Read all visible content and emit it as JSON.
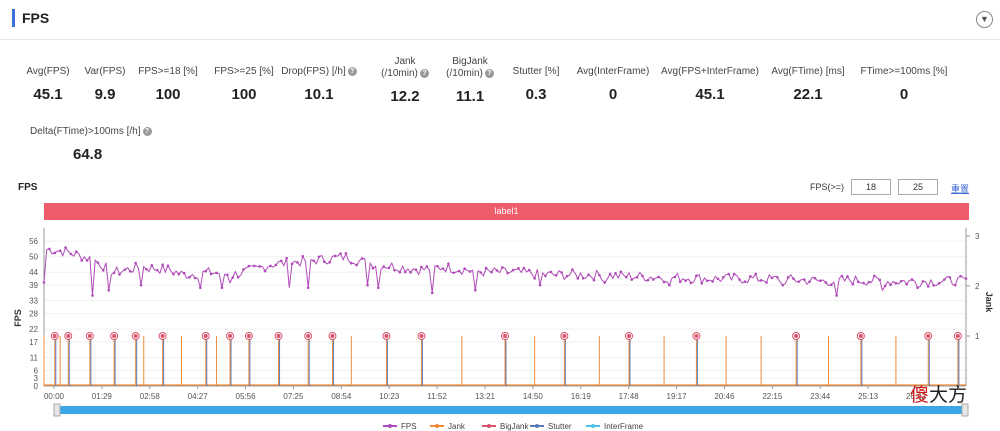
{
  "header": {
    "title": "FPS"
  },
  "metrics": [
    {
      "label": "Avg(FPS)",
      "value": "45.1"
    },
    {
      "label": "Var(FPS)",
      "value": "9.9"
    },
    {
      "label": "FPS>=18 [%]",
      "value": "100"
    },
    {
      "label": "FPS>=25 [%]",
      "value": "100"
    },
    {
      "label": "Drop(FPS) [/h]",
      "value": "10.1",
      "help": true
    },
    {
      "label1": "Jank",
      "label2": "(/10min)",
      "value": "12.2",
      "help": true
    },
    {
      "label1": "BigJank",
      "label2": "(/10min)",
      "value": "11.1",
      "help": true
    },
    {
      "label": "Stutter [%]",
      "value": "0.3"
    },
    {
      "label": "Avg(InterFrame)",
      "value": "0"
    },
    {
      "label": "Avg(FPS+InterFrame)",
      "value": "45.1"
    },
    {
      "label": "Avg(FTime) [ms]",
      "value": "22.1"
    },
    {
      "label": "FTime>=100ms [%]",
      "value": "0"
    },
    {
      "label": "Delta(FTime)>100ms [/h]",
      "value": "64.8",
      "help": true
    }
  ],
  "chart_section": {
    "title": "FPS",
    "threshold_label": "FPS(>=)",
    "threshold_low": "18",
    "threshold_high": "25",
    "reset_label": "重置",
    "label_band": "label1"
  },
  "chart_data": {
    "type": "line",
    "y_left_label": "FPS",
    "y_right_label": "Jank",
    "y_left_ticks": [
      0,
      3,
      6,
      11,
      17,
      22,
      28,
      33,
      39,
      44,
      50,
      56
    ],
    "y_left_range": [
      0,
      58
    ],
    "y_right_ticks": [
      1,
      2,
      3
    ],
    "y_right_range": [
      0,
      3
    ],
    "x_ticks": [
      "00:00",
      "01:29",
      "02:58",
      "04:27",
      "05:56",
      "07:25",
      "08:54",
      "10:23",
      "11:52",
      "13:21",
      "14:50",
      "16:19",
      "17:48",
      "19:17",
      "20:46",
      "22:15",
      "23:44",
      "25:13",
      "26:42"
    ],
    "x_range_seconds": [
      0,
      1710
    ],
    "legend": [
      "FPS",
      "Jank",
      "BigJank",
      "Stutter",
      "InterFrame"
    ],
    "colors": {
      "FPS": "#b04ab8",
      "Jank": "#f08c3a",
      "BigJank": "#d9546b",
      "Stutter": "#5a7db8",
      "InterFrame": "#4fc3e8"
    },
    "fps_trend": [
      [
        0,
        53
      ],
      [
        40,
        52
      ],
      [
        90,
        49
      ],
      [
        130,
        44
      ],
      [
        180,
        46
      ],
      [
        230,
        45
      ],
      [
        260,
        43
      ],
      [
        310,
        44
      ],
      [
        350,
        43
      ],
      [
        390,
        45
      ],
      [
        420,
        47
      ],
      [
        470,
        48
      ],
      [
        520,
        49
      ],
      [
        560,
        50
      ],
      [
        590,
        48
      ],
      [
        620,
        47
      ],
      [
        660,
        46
      ],
      [
        700,
        45
      ],
      [
        740,
        46
      ],
      [
        780,
        45
      ],
      [
        820,
        44
      ],
      [
        870,
        44
      ],
      [
        930,
        43
      ],
      [
        1000,
        43
      ],
      [
        1080,
        42.5
      ],
      [
        1160,
        42
      ],
      [
        1240,
        41.5
      ],
      [
        1320,
        41.5
      ],
      [
        1400,
        41
      ],
      [
        1450,
        40.5
      ],
      [
        1500,
        41
      ],
      [
        1560,
        40.5
      ],
      [
        1640,
        40.5
      ],
      [
        1710,
        40.5
      ]
    ],
    "fps_start_dip": [
      [
        0,
        40
      ],
      [
        5,
        53
      ]
    ],
    "fps_drops": [
      [
        90,
        35
      ],
      [
        120,
        37
      ],
      [
        180,
        39
      ],
      [
        290,
        38
      ],
      [
        330,
        38
      ],
      [
        345,
        40
      ],
      [
        455,
        38
      ],
      [
        490,
        38
      ],
      [
        600,
        39
      ],
      [
        620,
        38
      ],
      [
        720,
        36
      ],
      [
        800,
        37
      ],
      [
        920,
        39
      ],
      [
        1040,
        40
      ],
      [
        1160,
        39
      ],
      [
        1370,
        39
      ],
      [
        1470,
        35
      ],
      [
        1555,
        37
      ],
      [
        1620,
        38
      ],
      [
        1690,
        39
      ]
    ],
    "jank_times": [
      0,
      20,
      30,
      45,
      85,
      130,
      170,
      185,
      220,
      255,
      300,
      320,
      345,
      380,
      435,
      490,
      535,
      570,
      635,
      700,
      775,
      855,
      910,
      965,
      1030,
      1085,
      1150,
      1210,
      1265,
      1330,
      1395,
      1455,
      1515,
      1580,
      1640,
      1695
    ],
    "jank_value": 1,
    "stutter_times": [
      20,
      45,
      85,
      130,
      170,
      220,
      300,
      345,
      380,
      435,
      490,
      535,
      635,
      700,
      855,
      965,
      1085,
      1210,
      1395,
      1515,
      1640,
      1695
    ]
  }
}
